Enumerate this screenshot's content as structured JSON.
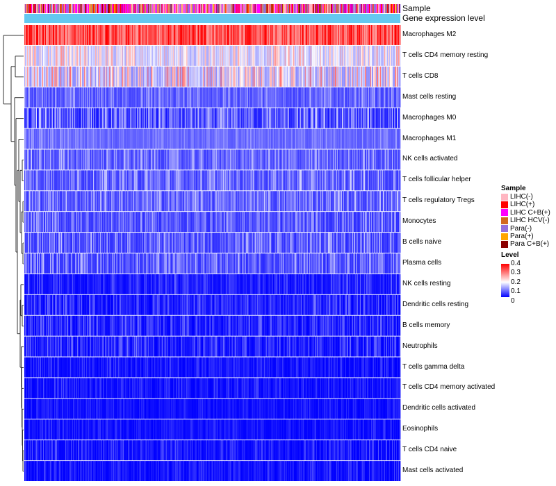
{
  "annotation_labels": {
    "sample": "Sample",
    "expression": "Gene expression level"
  },
  "chart_data": {
    "type": "heatmap",
    "rows": [
      {
        "label": "Macrophages M2",
        "mean": 0.32,
        "spread": 0.12
      },
      {
        "label": "T cells CD4 memory resting",
        "mean": 0.17,
        "spread": 0.1
      },
      {
        "label": "T cells CD8",
        "mean": 0.16,
        "spread": 0.14
      },
      {
        "label": "Mast cells resting",
        "mean": 0.07,
        "spread": 0.06
      },
      {
        "label": "Macrophages M0",
        "mean": 0.05,
        "spread": 0.1
      },
      {
        "label": "Macrophages M1",
        "mean": 0.08,
        "spread": 0.04
      },
      {
        "label": "NK cells activated",
        "mean": 0.07,
        "spread": 0.07
      },
      {
        "label": "T cells follicular helper",
        "mean": 0.07,
        "spread": 0.08
      },
      {
        "label": "T cells regulatory  Tregs",
        "mean": 0.07,
        "spread": 0.08
      },
      {
        "label": "Monocytes",
        "mean": 0.06,
        "spread": 0.07
      },
      {
        "label": "B cells naive",
        "mean": 0.06,
        "spread": 0.08
      },
      {
        "label": "Plasma cells",
        "mean": 0.06,
        "spread": 0.08
      },
      {
        "label": "NK cells resting",
        "mean": 0.02,
        "spread": 0.05
      },
      {
        "label": "Dendritic cells resting",
        "mean": 0.02,
        "spread": 0.06
      },
      {
        "label": "B cells memory",
        "mean": 0.02,
        "spread": 0.06
      },
      {
        "label": "Neutrophils",
        "mean": 0.02,
        "spread": 0.06
      },
      {
        "label": "T cells gamma delta",
        "mean": 0.01,
        "spread": 0.04
      },
      {
        "label": "T cells CD4 memory activated",
        "mean": 0.01,
        "spread": 0.04
      },
      {
        "label": "Dendritic cells activated",
        "mean": 0.01,
        "spread": 0.03
      },
      {
        "label": "Eosinophils",
        "mean": 0.01,
        "spread": 0.03
      },
      {
        "label": "T cells CD4 naive",
        "mean": 0.01,
        "spread": 0.05
      },
      {
        "label": "Mast cells activated",
        "mean": 0.01,
        "spread": 0.04
      }
    ],
    "n_columns": 540,
    "color_scale": {
      "title": "Level",
      "domain": [
        0,
        0.4
      ],
      "ticks": [
        "0.4",
        "0.3",
        "0.2",
        "0.1",
        "0"
      ],
      "colors": [
        "#0000ff",
        "#ffffff",
        "#ff0000"
      ]
    },
    "sample_legend": {
      "title": "Sample",
      "items": [
        {
          "label": "LIHC(-)",
          "color": "#ffb6c1"
        },
        {
          "label": "LIHC(+)",
          "color": "#ff0000"
        },
        {
          "label": "LIHC C+B(+)",
          "color": "#ff00ff"
        },
        {
          "label": "LIHC HCV(-)",
          "color": "#d2691e"
        },
        {
          "label": "Para(-)",
          "color": "#9370db"
        },
        {
          "label": "Para(+)",
          "color": "#ffa500"
        },
        {
          "label": "Para C+B(+)",
          "color": "#8b0000"
        }
      ]
    },
    "expression_bar_color": "#64c8f0"
  }
}
